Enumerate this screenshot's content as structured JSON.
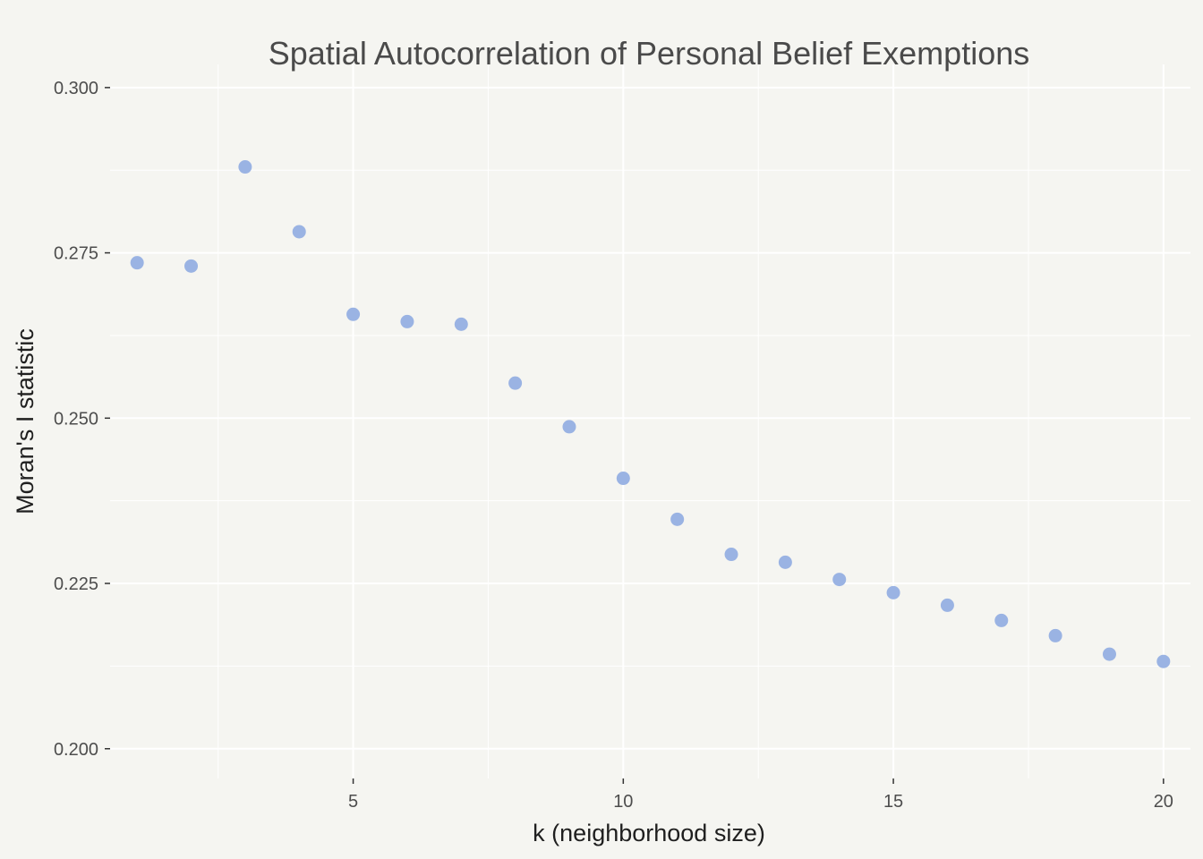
{
  "chart_data": {
    "type": "scatter",
    "title": "Spatial Autocorrelation of Personal Belief Exemptions",
    "xlabel": "k (neighborhood size)",
    "ylabel": "Moran's I statistic",
    "xlim": [
      0.5,
      20.5
    ],
    "ylim": [
      0.1955,
      0.3035
    ],
    "x_ticks": [
      5,
      10,
      15,
      20
    ],
    "x_tick_labels": [
      "5",
      "10",
      "15",
      "20"
    ],
    "x_minor": [
      2.5,
      7.5,
      12.5,
      17.5
    ],
    "y_ticks": [
      0.2,
      0.225,
      0.25,
      0.275,
      0.3
    ],
    "y_tick_labels": [
      "0.200",
      "0.225",
      "0.250",
      "0.275",
      "0.300"
    ],
    "y_minor": [
      0.2125,
      0.2375,
      0.2625,
      0.2875
    ],
    "grid": true,
    "point_color": "#9ab3e3",
    "series": [
      {
        "name": "Moran's I",
        "x": [
          1,
          2,
          3,
          4,
          5,
          6,
          7,
          8,
          9,
          10,
          11,
          12,
          13,
          14,
          15,
          16,
          17,
          18,
          19,
          20
        ],
        "y": [
          0.2735,
          0.273,
          0.288,
          0.2782,
          0.2657,
          0.2646,
          0.2642,
          0.2553,
          0.2487,
          0.2409,
          0.2347,
          0.2294,
          0.2282,
          0.2256,
          0.2236,
          0.2217,
          0.2194,
          0.2171,
          0.2143,
          0.2132
        ]
      }
    ]
  }
}
